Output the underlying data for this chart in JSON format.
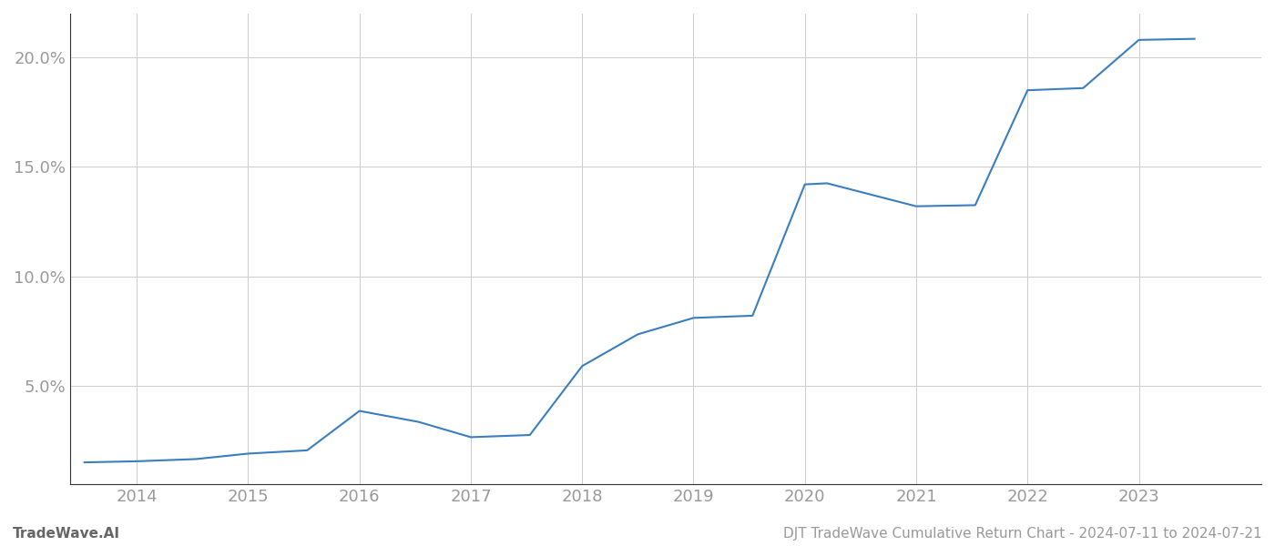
{
  "x_years": [
    2013.53,
    2014.0,
    2014.53,
    2015.0,
    2015.53,
    2016.0,
    2016.53,
    2017.0,
    2017.53,
    2018.0,
    2018.5,
    2019.0,
    2019.53,
    2020.0,
    2020.2,
    2021.0,
    2021.53,
    2022.0,
    2022.5,
    2023.0,
    2023.5
  ],
  "y_values": [
    1.5,
    1.55,
    1.65,
    1.9,
    2.05,
    3.85,
    3.35,
    2.65,
    2.75,
    5.9,
    7.35,
    8.1,
    8.2,
    14.2,
    14.25,
    13.2,
    13.25,
    18.5,
    18.6,
    20.8,
    20.85
  ],
  "line_color": "#3a7ebf",
  "line_width": 1.5,
  "background_color": "#ffffff",
  "grid_color": "#cccccc",
  "grid_linewidth": 0.7,
  "yticks": [
    5.0,
    10.0,
    15.0,
    20.0
  ],
  "xtick_labels": [
    "2014",
    "2015",
    "2016",
    "2017",
    "2018",
    "2019",
    "2020",
    "2021",
    "2022",
    "2023"
  ],
  "xtick_values": [
    2014,
    2015,
    2016,
    2017,
    2018,
    2019,
    2020,
    2021,
    2022,
    2023
  ],
  "xlim": [
    2013.4,
    2024.1
  ],
  "ylim": [
    0.5,
    22.0
  ],
  "footer_left": "TradeWave.AI",
  "footer_right": "DJT TradeWave Cumulative Return Chart - 2024-07-11 to 2024-07-21",
  "footer_fontsize": 11,
  "tick_fontsize": 13,
  "tick_color": "#999999",
  "spine_color": "#333333"
}
